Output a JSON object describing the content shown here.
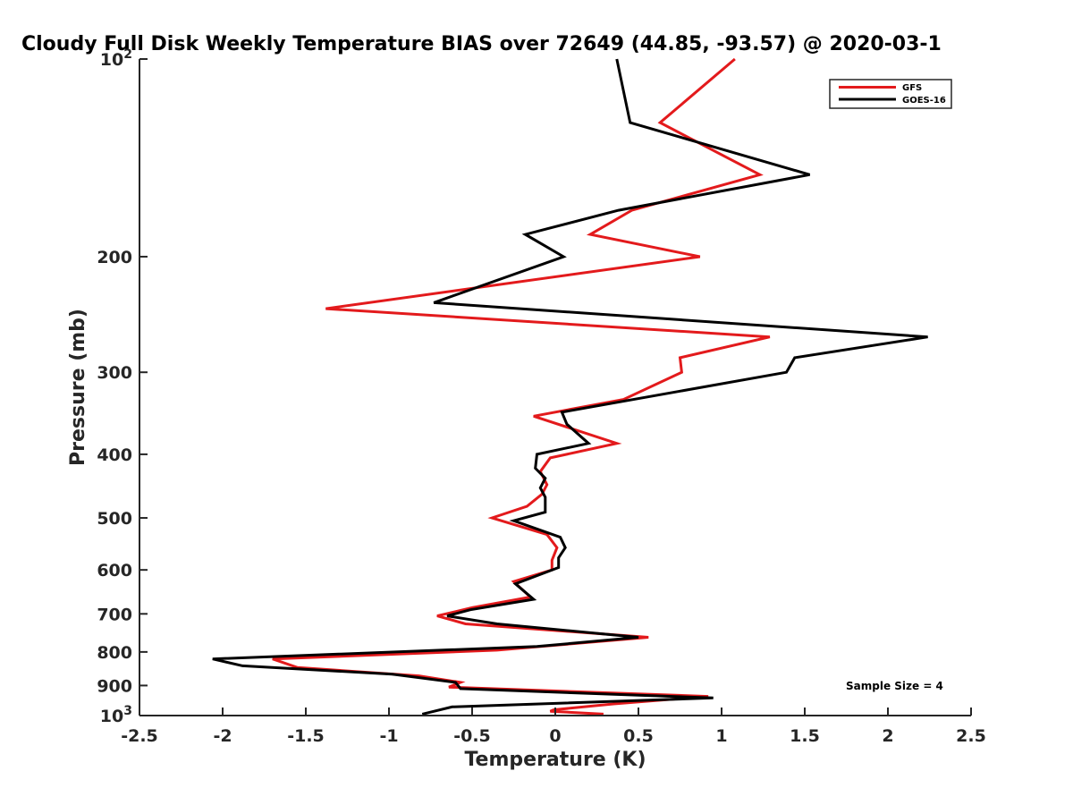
{
  "chart_data": {
    "type": "line",
    "title": "Cloudy Full Disk Weekly Temperature BIAS over 72649 (44.85, -93.57) @ 2020-03-1",
    "xlabel": "Temperature (K)",
    "ylabel": "Pressure (mb)",
    "xlim": [
      -2.5,
      2.5
    ],
    "ylim": [
      100,
      1000
    ],
    "y_scale": "log",
    "y_reversed": true,
    "grid": false,
    "legend_position": "top-right",
    "x_ticks": [
      -2.5,
      -2,
      -1.5,
      -1,
      -0.5,
      0,
      0.5,
      1,
      1.5,
      2,
      2.5
    ],
    "x_tick_labels": [
      "-2.5",
      "-2",
      "-1.5",
      "-1",
      "-0.5",
      "0",
      "0.5",
      "1",
      "1.5",
      "2",
      "2.5"
    ],
    "y_ticks": [
      100,
      200,
      300,
      400,
      500,
      600,
      700,
      800,
      900,
      1000
    ],
    "y_tick_labels": [
      {
        "base": "10",
        "exp": "2"
      },
      {
        "base": "200",
        "exp": ""
      },
      {
        "base": "300",
        "exp": ""
      },
      {
        "base": "400",
        "exp": ""
      },
      {
        "base": "500",
        "exp": ""
      },
      {
        "base": "600",
        "exp": ""
      },
      {
        "base": "700",
        "exp": ""
      },
      {
        "base": "800",
        "exp": ""
      },
      {
        "base": "900",
        "exp": ""
      },
      {
        "base": "10",
        "exp": "3"
      }
    ],
    "series": [
      {
        "name": "GFS",
        "color": "#e31a1c",
        "points": [
          [
            1.08,
            100
          ],
          [
            0.63,
            125
          ],
          [
            1.23,
            150
          ],
          [
            0.46,
            170
          ],
          [
            0.21,
            185
          ],
          [
            0.87,
            200
          ],
          [
            -1.38,
            240
          ],
          [
            1.29,
            265
          ],
          [
            0.75,
            285
          ],
          [
            0.76,
            300
          ],
          [
            0.41,
            330
          ],
          [
            -0.13,
            350
          ],
          [
            0.37,
            385
          ],
          [
            -0.03,
            405
          ],
          [
            -0.09,
            425
          ],
          [
            -0.05,
            445
          ],
          [
            -0.08,
            460
          ],
          [
            -0.17,
            480
          ],
          [
            -0.38,
            500
          ],
          [
            -0.05,
            530
          ],
          [
            0.01,
            555
          ],
          [
            -0.02,
            580
          ],
          [
            -0.02,
            600
          ],
          [
            -0.25,
            625
          ],
          [
            -0.15,
            660
          ],
          [
            -0.5,
            685
          ],
          [
            -0.71,
            705
          ],
          [
            -0.54,
            725
          ],
          [
            0.56,
            760
          ],
          [
            -0.35,
            795
          ],
          [
            -1.7,
            820
          ],
          [
            -1.55,
            845
          ],
          [
            -0.82,
            870
          ],
          [
            -0.57,
            890
          ],
          [
            -0.64,
            905
          ],
          [
            0.92,
            935
          ],
          [
            0.35,
            960
          ],
          [
            -0.01,
            980
          ],
          [
            -0.03,
            985
          ],
          [
            0.29,
            995
          ]
        ]
      },
      {
        "name": "GOES-16",
        "color": "#000000",
        "points": [
          [
            0.37,
            100
          ],
          [
            0.45,
            125
          ],
          [
            1.53,
            150
          ],
          [
            0.38,
            170
          ],
          [
            -0.18,
            185
          ],
          [
            0.05,
            200
          ],
          [
            -0.73,
            235
          ],
          [
            2.24,
            265
          ],
          [
            1.44,
            285
          ],
          [
            1.39,
            300
          ],
          [
            0.04,
            345
          ],
          [
            0.07,
            360
          ],
          [
            0.2,
            385
          ],
          [
            -0.11,
            400
          ],
          [
            -0.12,
            420
          ],
          [
            -0.06,
            435
          ],
          [
            -0.09,
            450
          ],
          [
            -0.06,
            465
          ],
          [
            -0.06,
            490
          ],
          [
            -0.25,
            505
          ],
          [
            0.03,
            535
          ],
          [
            0.06,
            555
          ],
          [
            0.02,
            575
          ],
          [
            0.02,
            595
          ],
          [
            -0.24,
            630
          ],
          [
            -0.13,
            665
          ],
          [
            -0.51,
            690
          ],
          [
            -0.65,
            705
          ],
          [
            -0.35,
            725
          ],
          [
            0.5,
            760
          ],
          [
            -0.11,
            785
          ],
          [
            -2.06,
            820
          ],
          [
            -1.88,
            840
          ],
          [
            -0.98,
            865
          ],
          [
            -0.6,
            890
          ],
          [
            -0.57,
            910
          ],
          [
            0.95,
            940
          ],
          [
            -0.62,
            970
          ],
          [
            -0.8,
            995
          ]
        ]
      }
    ],
    "annotation": "Sample Size = 4"
  }
}
